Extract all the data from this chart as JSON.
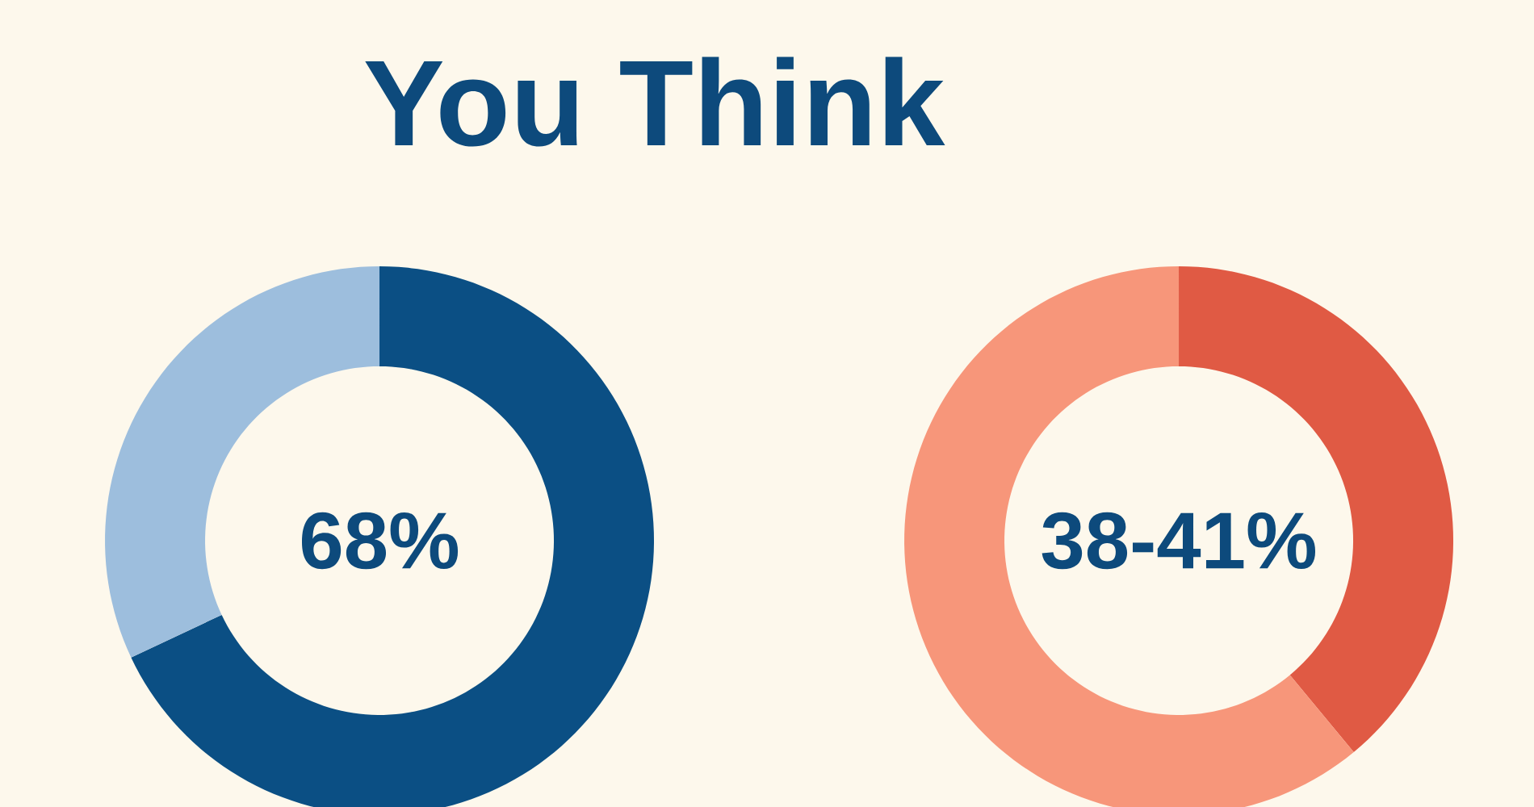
{
  "chart_data": [
    {
      "type": "donut",
      "title": "You Think",
      "categories": [
        null,
        null
      ],
      "values": [
        68,
        32
      ],
      "colors": [
        "#0b4f84",
        "#9dbedd"
      ],
      "annotations": [
        "68%"
      ]
    },
    {
      "type": "donut",
      "categories": [
        null,
        null
      ],
      "values": [
        39,
        61
      ],
      "colors": [
        "#e05a44",
        "#f7967a"
      ],
      "annotations": [
        "38-41%"
      ]
    }
  ]
}
